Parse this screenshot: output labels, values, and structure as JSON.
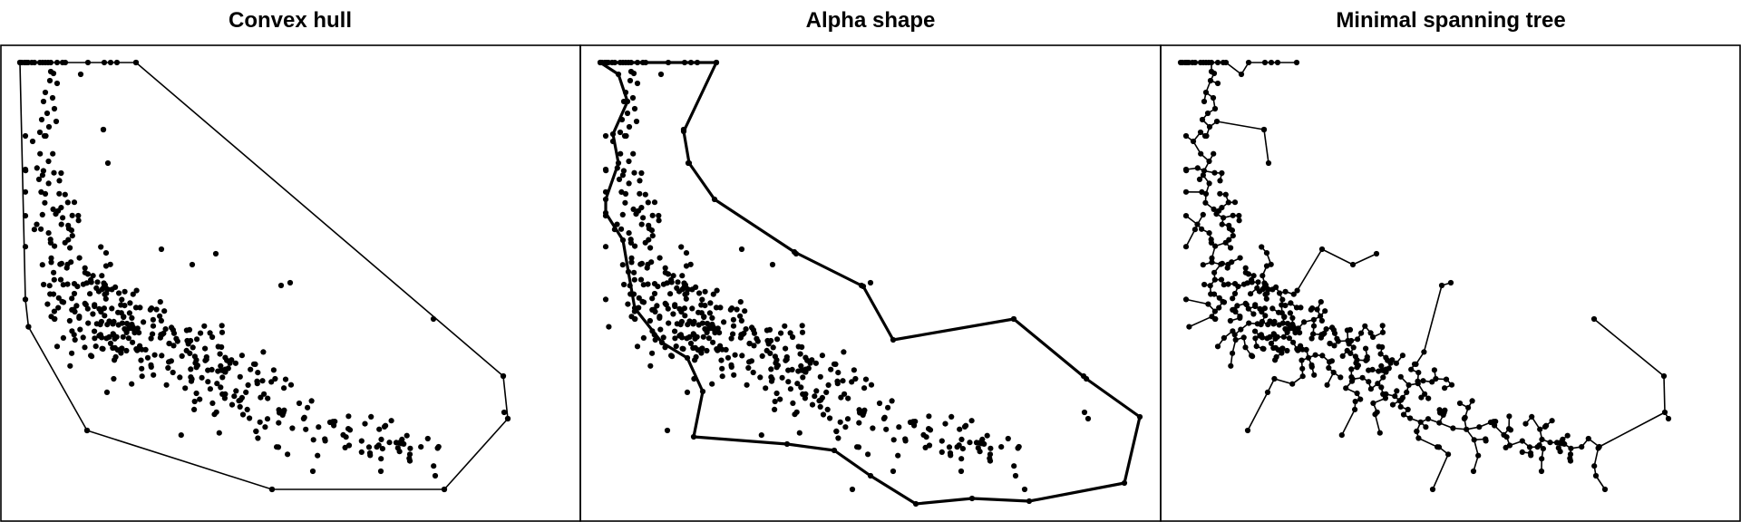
{
  "panels": [
    {
      "title": "Convex hull"
    },
    {
      "title": "Alpha shape"
    },
    {
      "title": "Minimal spanning tree"
    }
  ],
  "colors": {
    "ink": "#000000",
    "background": "#ffffff"
  }
}
